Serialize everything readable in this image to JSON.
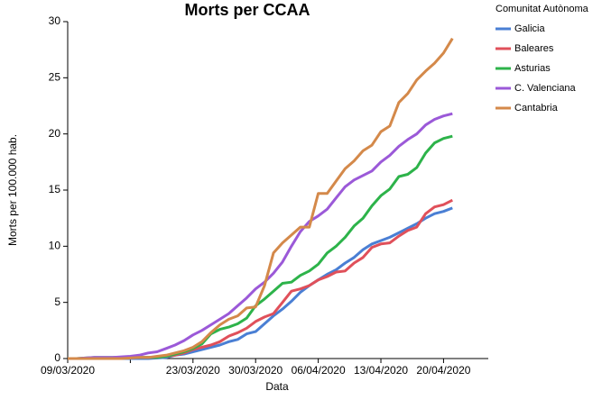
{
  "chart_data": {
    "type": "line",
    "title": "Morts per CCAA",
    "x_label": "Data",
    "y_label": "Morts per 100.000 hab.",
    "legend_title": "Comunitat Autònoma",
    "legend_position": "right",
    "x": [
      "09/03/2020",
      "10/03/2020",
      "11/03/2020",
      "12/03/2020",
      "13/03/2020",
      "14/03/2020",
      "15/03/2020",
      "16/03/2020",
      "17/03/2020",
      "18/03/2020",
      "19/03/2020",
      "20/03/2020",
      "21/03/2020",
      "22/03/2020",
      "23/03/2020",
      "24/03/2020",
      "25/03/2020",
      "26/03/2020",
      "27/03/2020",
      "28/03/2020",
      "29/03/2020",
      "30/03/2020",
      "31/03/2020",
      "01/04/2020",
      "02/04/2020",
      "03/04/2020",
      "04/04/2020",
      "05/04/2020",
      "06/04/2020",
      "07/04/2020",
      "08/04/2020",
      "09/04/2020",
      "10/04/2020",
      "11/04/2020",
      "12/04/2020",
      "13/04/2020",
      "14/04/2020",
      "15/04/2020",
      "16/04/2020",
      "17/04/2020",
      "18/04/2020",
      "19/04/2020",
      "20/04/2020",
      "21/04/2020"
    ],
    "xlim": [
      "09/03/2020",
      "25/04/2020"
    ],
    "xticks": [
      "09/03/2020",
      {
        "value": "16/03/2020",
        "label": null
      },
      "23/03/2020",
      "30/03/2020",
      "06/04/2020",
      "13/04/2020",
      "20/04/2020"
    ],
    "ylim": [
      0,
      30
    ],
    "yticks": [
      0,
      5,
      10,
      15,
      20,
      25,
      30
    ],
    "grid": false,
    "series": [
      {
        "name": "Galicia",
        "color": "#4a7fd4",
        "values": [
          0,
          0,
          0,
          0,
          0,
          0,
          0,
          0,
          0,
          0,
          0.05,
          0.1,
          0.3,
          0.4,
          0.6,
          0.8,
          1.0,
          1.2,
          1.5,
          1.7,
          2.2,
          2.4,
          3.1,
          3.8,
          4.4,
          5.1,
          5.9,
          6.5,
          7.0,
          7.5,
          7.9,
          8.5,
          9.0,
          9.7,
          10.2,
          10.5,
          10.8,
          11.2,
          11.6,
          12.0,
          12.5,
          12.9,
          13.1,
          13.4
        ]
      },
      {
        "name": "Baleares",
        "color": "#e0505a",
        "values": [
          0,
          0,
          0,
          0,
          0,
          0.05,
          0.1,
          0.1,
          0.1,
          0.1,
          0.1,
          0.2,
          0.3,
          0.5,
          0.8,
          1.0,
          1.2,
          1.5,
          2.0,
          2.3,
          2.7,
          3.3,
          3.7,
          4.0,
          5.0,
          6.0,
          6.2,
          6.5,
          7.0,
          7.3,
          7.7,
          7.8,
          8.5,
          9.0,
          9.9,
          10.2,
          10.3,
          10.9,
          11.4,
          11.7,
          12.9,
          13.5,
          13.7,
          14.1
        ]
      },
      {
        "name": "Asturias",
        "color": "#2db34a",
        "values": [
          0,
          0,
          0.05,
          0.1,
          0.1,
          0.1,
          0.1,
          0.1,
          0.1,
          0.1,
          0.1,
          0.2,
          0.4,
          0.6,
          0.9,
          1.3,
          2.2,
          2.6,
          2.8,
          3.1,
          3.6,
          4.7,
          5.3,
          6.0,
          6.7,
          6.8,
          7.4,
          7.8,
          8.4,
          9.4,
          10.0,
          10.8,
          11.8,
          12.5,
          13.6,
          14.5,
          15.1,
          16.2,
          16.4,
          17.0,
          18.3,
          19.2,
          19.6,
          19.8
        ]
      },
      {
        "name": "C. Valenciana",
        "color": "#9b59d8",
        "values": [
          0,
          0,
          0.05,
          0.1,
          0.1,
          0.1,
          0.15,
          0.2,
          0.3,
          0.5,
          0.6,
          0.9,
          1.2,
          1.6,
          2.1,
          2.5,
          3.0,
          3.5,
          4.0,
          4.7,
          5.4,
          6.2,
          6.8,
          7.6,
          8.6,
          10.0,
          11.3,
          12.2,
          12.7,
          13.3,
          14.3,
          15.3,
          15.9,
          16.3,
          16.7,
          17.5,
          18.1,
          18.9,
          19.5,
          20.0,
          20.8,
          21.3,
          21.6,
          21.8
        ]
      },
      {
        "name": "Cantabria",
        "color": "#d4894a",
        "values": [
          0,
          0,
          0,
          0,
          0,
          0,
          0,
          0.05,
          0.1,
          0.1,
          0.2,
          0.3,
          0.5,
          0.7,
          1.0,
          1.5,
          2.3,
          3.0,
          3.5,
          3.8,
          4.5,
          4.6,
          6.5,
          9.4,
          10.3,
          11.0,
          11.7,
          11.7,
          14.7,
          14.7,
          15.8,
          16.9,
          17.6,
          18.5,
          19.0,
          20.2,
          20.7,
          22.8,
          23.6,
          24.8,
          25.6,
          26.3,
          27.2,
          28.5
        ]
      }
    ]
  }
}
